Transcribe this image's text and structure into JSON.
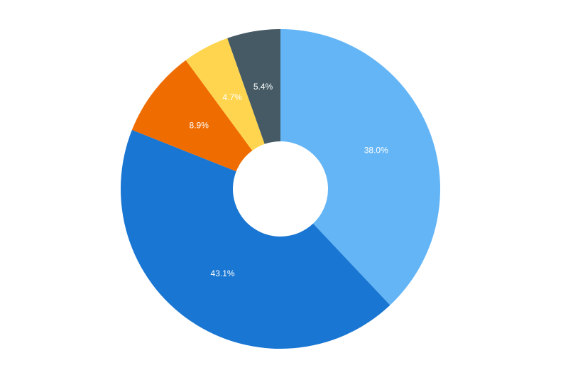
{
  "chart_data": {
    "type": "donut",
    "values": [
      38.0,
      43.1,
      8.9,
      4.7,
      5.4
    ],
    "value_labels": [
      "38.0%",
      "43.1%",
      "8.9%",
      "4.7%",
      "5.4%"
    ],
    "colors": [
      "#64b5f6",
      "#1976d2",
      "#ef6c00",
      "#ffd54f",
      "#455a64"
    ]
  }
}
